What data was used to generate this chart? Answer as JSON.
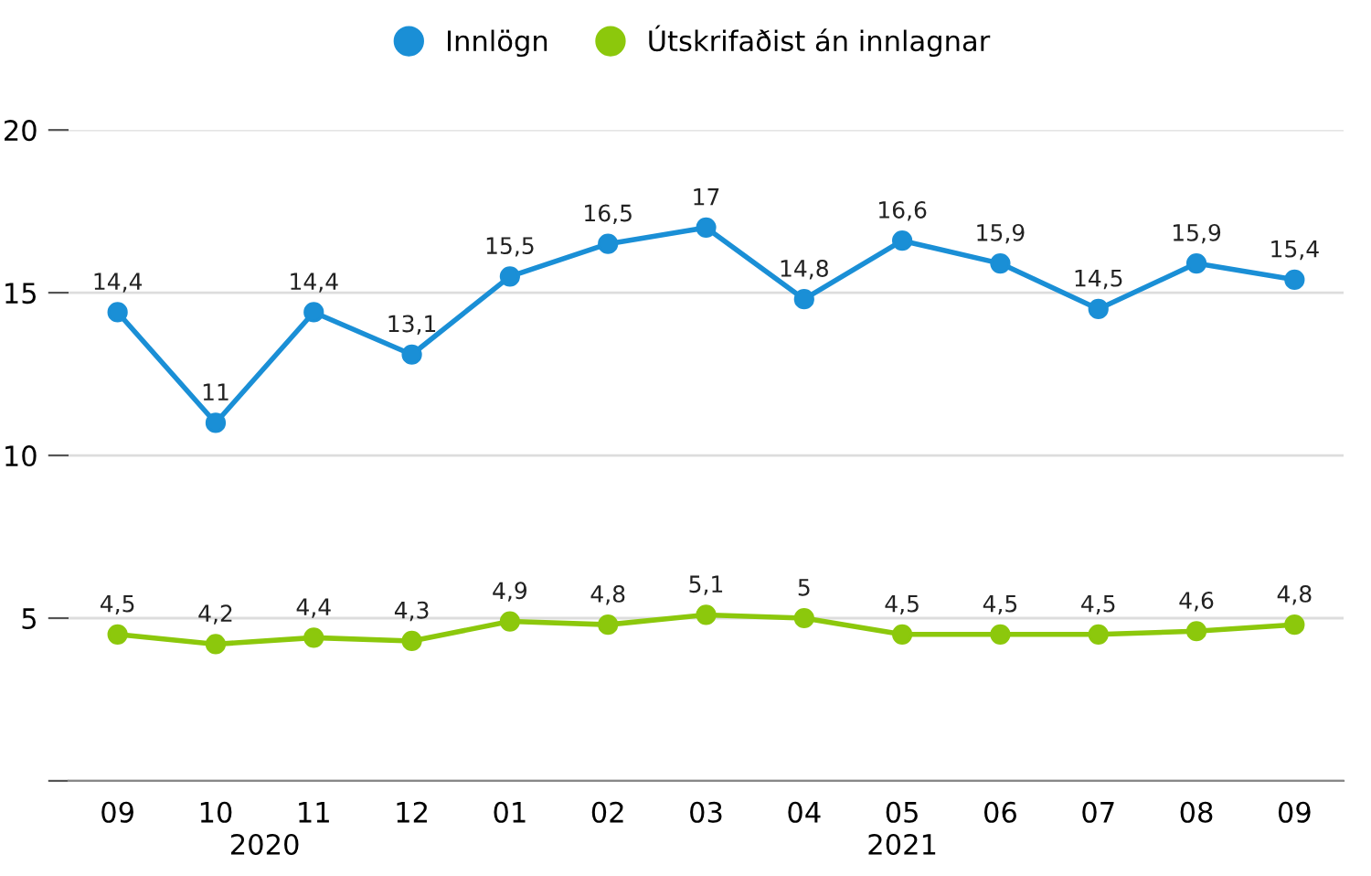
{
  "chart_data": {
    "type": "line",
    "categories": [
      "09",
      "10",
      "11",
      "12",
      "01",
      "02",
      "03",
      "04",
      "05",
      "06",
      "07",
      "08",
      "09"
    ],
    "series": [
      {
        "name": "Innlögn",
        "color": "#1a8fd6",
        "values": [
          14.4,
          11,
          14.4,
          13.1,
          15.5,
          16.5,
          17,
          14.8,
          16.6,
          15.9,
          14.5,
          15.9,
          15.4
        ],
        "value_labels": [
          "14,4",
          "11",
          "14,4",
          "13,1",
          "15,5",
          "16,5",
          "17",
          "14,8",
          "16,6",
          "15,9",
          "14,5",
          "15,9",
          "15,4"
        ]
      },
      {
        "name": "Útskrifaðist án innlagnar",
        "color": "#8cc80c",
        "values": [
          4.5,
          4.2,
          4.4,
          4.3,
          4.9,
          4.8,
          5.1,
          5,
          4.5,
          4.5,
          4.5,
          4.6,
          4.8
        ],
        "value_labels": [
          "4,5",
          "4,2",
          "4,4",
          "4,3",
          "4,9",
          "4,8",
          "5,1",
          "5",
          "4,5",
          "4,5",
          "4,5",
          "4,6",
          "4,8"
        ]
      }
    ],
    "annotations": [
      "2020",
      "2021"
    ],
    "ylim": [
      0,
      20
    ],
    "yticks": [
      {
        "value": 0,
        "label": null
      },
      5,
      10,
      15,
      20
    ],
    "grid": "y",
    "legend": "top",
    "marker": "circle",
    "line_style": "solid"
  }
}
